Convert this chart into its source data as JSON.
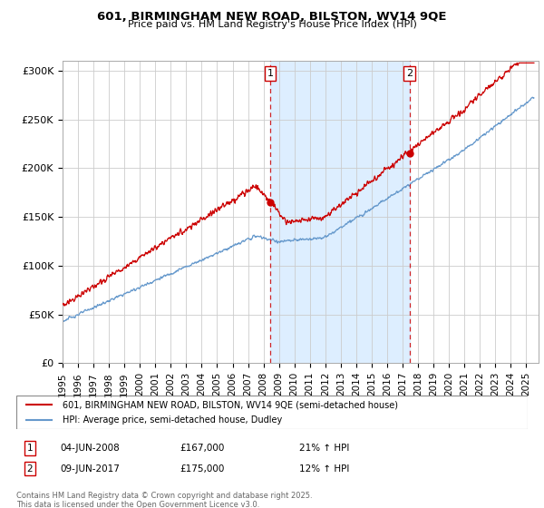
{
  "title1": "601, BIRMINGHAM NEW ROAD, BILSTON, WV14 9QE",
  "title2": "Price paid vs. HM Land Registry's House Price Index (HPI)",
  "ylabel_ticks": [
    "£0",
    "£50K",
    "£100K",
    "£150K",
    "£200K",
    "£250K",
    "£300K"
  ],
  "ytick_values": [
    0,
    50000,
    100000,
    150000,
    200000,
    250000,
    300000
  ],
  "ylim": [
    0,
    310000
  ],
  "xlim_start": 1995.0,
  "xlim_end": 2025.8,
  "marker1_x": 2008.43,
  "marker1_y": 167000,
  "marker1_label": "1",
  "marker1_date": "04-JUN-2008",
  "marker1_price": "£167,000",
  "marker1_hpi": "21% ↑ HPI",
  "marker2_x": 2017.44,
  "marker2_y": 175000,
  "marker2_label": "2",
  "marker2_date": "09-JUN-2017",
  "marker2_price": "£175,000",
  "marker2_hpi": "12% ↑ HPI",
  "red_color": "#cc0000",
  "blue_color": "#6699cc",
  "shaded_region_color": "#ddeeff",
  "grid_color": "#cccccc",
  "legend_label_red": "601, BIRMINGHAM NEW ROAD, BILSTON, WV14 9QE (semi-detached house)",
  "legend_label_blue": "HPI: Average price, semi-detached house, Dudley",
  "footer_text": "Contains HM Land Registry data © Crown copyright and database right 2025.\nThis data is licensed under the Open Government Licence v3.0.",
  "xtick_years": [
    1995,
    1996,
    1997,
    1998,
    1999,
    2000,
    2001,
    2002,
    2003,
    2004,
    2005,
    2006,
    2007,
    2008,
    2009,
    2010,
    2011,
    2012,
    2013,
    2014,
    2015,
    2016,
    2017,
    2018,
    2019,
    2020,
    2021,
    2022,
    2023,
    2024,
    2025
  ]
}
